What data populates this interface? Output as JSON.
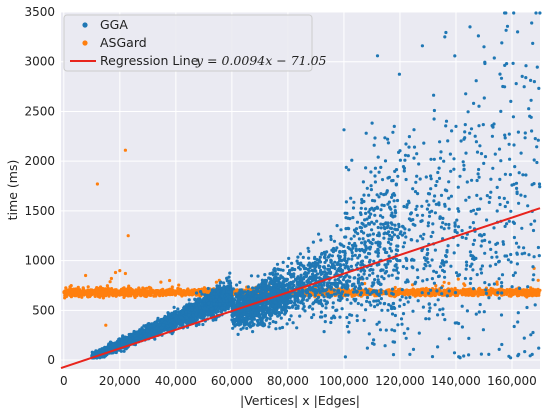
{
  "chart_data": {
    "type": "scatter",
    "xlabel": "|Vertices| x |Edges|",
    "ylabel": "time (ms)",
    "xlim": [
      -1000,
      170000
    ],
    "ylim": [
      -90,
      3500
    ],
    "x_ticks": [
      0,
      20000,
      40000,
      60000,
      80000,
      100000,
      120000,
      140000,
      160000
    ],
    "x_tick_labels": [
      "0",
      "20,000",
      "40,000",
      "60,000",
      "80,000",
      "100,000",
      "120,000",
      "140,000",
      "160,000"
    ],
    "y_ticks": [
      0,
      500,
      1000,
      1500,
      2000,
      2500,
      3000,
      3500
    ],
    "y_tick_labels": [
      "0",
      "500",
      "1000",
      "1500",
      "2000",
      "2500",
      "3000",
      "3500"
    ],
    "grid": true,
    "legend_position": "top-left",
    "background": "#eaeaf2",
    "series": [
      {
        "name": "GGA",
        "color": "#1f77b4",
        "trend": {
          "slope": 0.0094,
          "intercept": -71.05
        },
        "notable_points": [
          {
            "x": 112000,
            "y": 3060
          },
          {
            "x": 128000,
            "y": 3160
          },
          {
            "x": 136000,
            "y": 3250
          },
          {
            "x": 145000,
            "y": 3350
          },
          {
            "x": 148000,
            "y": 3260
          },
          {
            "x": 150000,
            "y": 3150
          },
          {
            "x": 162000,
            "y": 3300
          },
          {
            "x": 165000,
            "y": 2960
          },
          {
            "x": 156000,
            "y": 2500
          },
          {
            "x": 153000,
            "y": 2250
          },
          {
            "x": 118000,
            "y": 2350
          },
          {
            "x": 140000,
            "y": 2350
          },
          {
            "x": 168000,
            "y": 2800
          }
        ]
      },
      {
        "name": "ASGard",
        "color": "#ff7f0e",
        "level": 680,
        "notable_points": [
          {
            "x": 22000,
            "y": 2110
          },
          {
            "x": 12000,
            "y": 1770
          },
          {
            "x": 23000,
            "y": 1250
          },
          {
            "x": 20000,
            "y": 900
          },
          {
            "x": 22000,
            "y": 870
          },
          {
            "x": 17000,
            "y": 820
          },
          {
            "x": 15000,
            "y": 350
          }
        ]
      }
    ],
    "regression_line": {
      "name": "Regression Line",
      "equation": "y = 0.0094x − 71.05",
      "slope": 0.0094,
      "intercept": -71.05,
      "color": "#e8241d"
    }
  }
}
